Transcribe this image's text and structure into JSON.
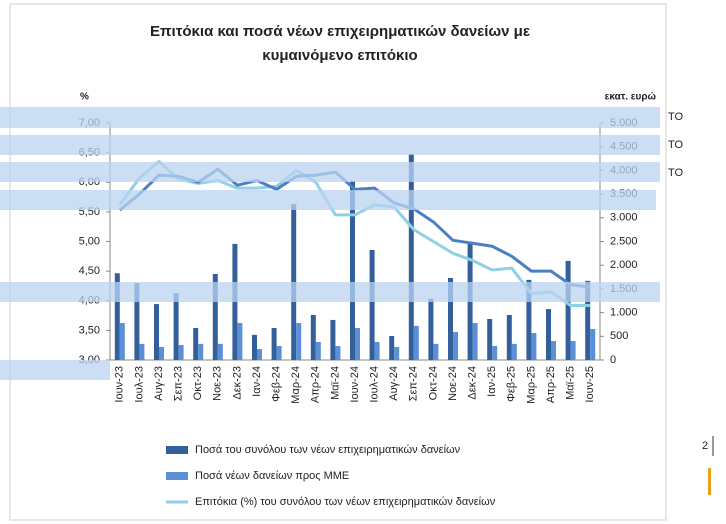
{
  "chart_data": {
    "type": "bar_line",
    "title_lines": [
      "Επιτόκια και ποσά νέων επιχειρηματικών δανείων με",
      "κυμαινόμενο επιτόκιο"
    ],
    "y_label": "%",
    "y2_label": "εκατ. ευρώ",
    "categories": [
      "Ιουν-23",
      "Ιουλ-23",
      "Αυγ-23",
      "Σεπ-23",
      "Οκτ-23",
      "Νοε-23",
      "Δεκ-23",
      "Ιαν-24",
      "Φεβ-24",
      "Μαρ-24",
      "Απρ-24",
      "Μαϊ-24",
      "Ιουν-24",
      "Ιουλ-24",
      "Αυγ-24",
      "Σεπ-24",
      "Οκτ-24",
      "Νοε-24",
      "Δεκ-24",
      "Ιαν-25",
      "Φεβ-25",
      "Μαρ-25",
      "Απρ-25",
      "Μαϊ-25",
      "Ιουν-25"
    ],
    "series": [
      {
        "name": "Ποσά του συνόλου των νέων επιχειρηματικών δανείων",
        "type": "bar",
        "axis": "y2",
        "color": "#33609a",
        "values": [
          1830,
          1620,
          1180,
          1410,
          675,
          1815,
          2450,
          530,
          675,
          3290,
          950,
          845,
          3780,
          2320,
          505,
          4350,
          1290,
          1730,
          2470,
          865,
          950,
          1690,
          1075,
          2090,
          1670
        ]
      },
      {
        "name": "Ποσά νέων δανείων προς ΜΜΕ",
        "type": "bar",
        "axis": "y2",
        "color": "#5b8fd8",
        "values": [
          780,
          340,
          275,
          315,
          340,
          340,
          780,
          230,
          295,
          780,
          380,
          295,
          675,
          380,
          275,
          720,
          340,
          590,
          780,
          295,
          340,
          570,
          400,
          400,
          655
        ]
      },
      {
        "name": "Επιτόκια (%) του συνόλου των νέων επιχειρηματικών δανείων",
        "type": "line",
        "color": "#8fd0e4",
        "values": [
          5.62,
          6.07,
          6.35,
          6.05,
          5.98,
          6.03,
          5.9,
          5.9,
          5.93,
          6.2,
          6.0,
          5.45,
          5.45,
          5.62,
          5.58,
          5.2,
          5.0,
          4.8,
          4.68,
          4.52,
          4.55,
          4.12,
          4.15,
          3.92,
          3.92
        ]
      },
      {
        "type": "line",
        "color": "#4a80c2",
        "values": [
          5.53,
          5.8,
          6.12,
          6.1,
          6.0,
          6.22,
          5.95,
          6.03,
          5.88,
          6.1,
          6.12,
          6.17,
          5.88,
          5.9,
          5.65,
          5.55,
          5.33,
          5.02,
          4.97,
          4.92,
          4.75,
          4.5,
          4.5,
          4.27,
          4.23
        ]
      }
    ],
    "ylim": [
      3,
      7
    ],
    "yticks": [
      {
        "value": 3,
        "label": "3,00"
      },
      {
        "value": 3.5,
        "label": "3,50"
      },
      {
        "value": 4,
        "label": "4,00"
      },
      {
        "value": 4.5,
        "label": "4,50"
      },
      {
        "value": 5,
        "label": "5,00"
      },
      {
        "value": 5.5,
        "label": "5,50"
      },
      {
        "value": 6,
        "label": "6,00"
      },
      {
        "value": 6.5,
        "label": "6,50"
      },
      {
        "value": 7,
        "label": "7,00"
      }
    ],
    "y2lim": [
      0,
      5000
    ],
    "y2ticks": [
      0,
      500,
      {
        "value": 1000,
        "label": "1.000"
      },
      {
        "value": 1500,
        "label": "1.500"
      },
      {
        "value": 2000,
        "label": "2.000"
      },
      {
        "value": 2500,
        "label": "2.500"
      },
      {
        "value": 3000,
        "label": "3.000"
      },
      {
        "value": 3500,
        "label": "3.500"
      },
      {
        "value": 4000,
        "label": "4.000"
      },
      {
        "value": 4500,
        "label": "4.500"
      },
      {
        "value": 5000,
        "label": "5.000"
      }
    ],
    "side_texts": [
      "ΤΟ",
      "ΤΟ",
      "ΤΟ"
    ],
    "page_number": "2"
  }
}
